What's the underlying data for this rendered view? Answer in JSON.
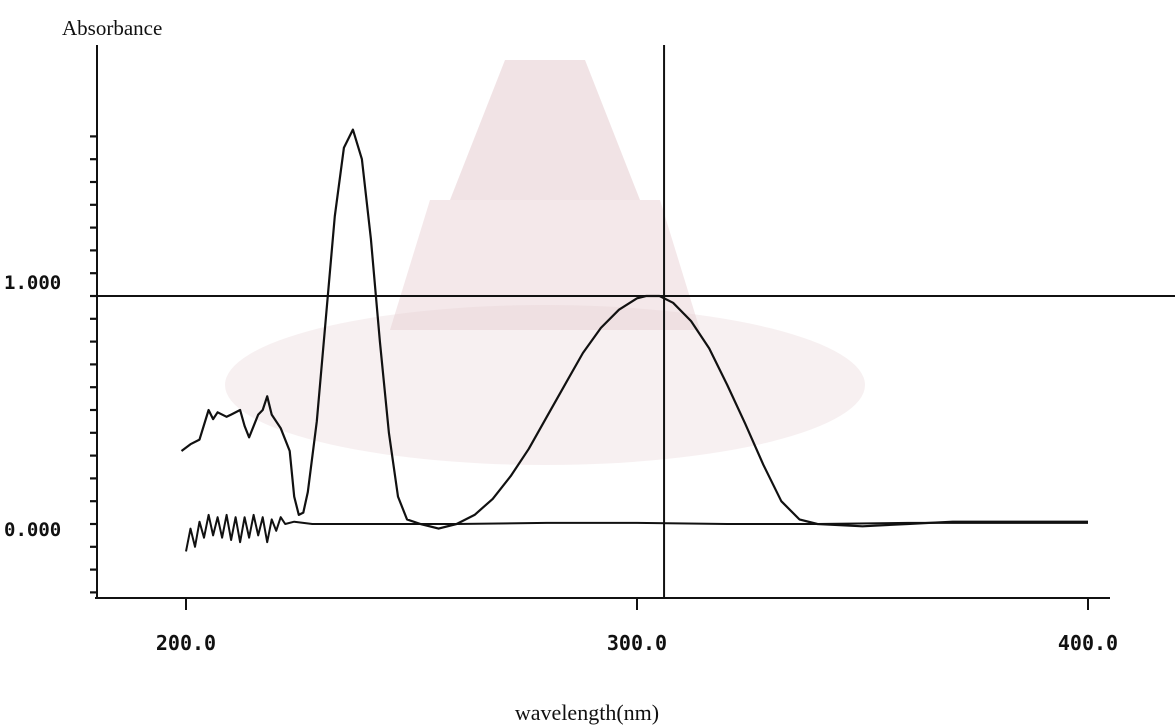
{
  "chart_data": {
    "type": "line",
    "ylabel": "Absorbance",
    "xlabel": "wavelength(nm)",
    "x_ticks": [
      "200.0",
      "300.0",
      "400.0"
    ],
    "x_tick_values": [
      200,
      300,
      400
    ],
    "y_ticks": [
      "0.000",
      "1.000"
    ],
    "y_tick_values": [
      0,
      1
    ],
    "xlim": [
      180,
      420
    ],
    "ylim": [
      -0.34,
      1.88
    ],
    "grid": false,
    "cursor": {
      "x": 306,
      "y": 1.0
    },
    "series": [
      {
        "points": [
          [
            199,
            0.32
          ],
          [
            201,
            0.35
          ],
          [
            203,
            0.37
          ],
          [
            205,
            0.5
          ],
          [
            206,
            0.46
          ],
          [
            207,
            0.49
          ],
          [
            209,
            0.47
          ],
          [
            210,
            0.48
          ],
          [
            212,
            0.5
          ],
          [
            213,
            0.43
          ],
          [
            214,
            0.38
          ],
          [
            216,
            0.48
          ],
          [
            217,
            0.5
          ],
          [
            218,
            0.56
          ],
          [
            219,
            0.48
          ],
          [
            221,
            0.42
          ],
          [
            223,
            0.32
          ],
          [
            224,
            0.12
          ],
          [
            225,
            0.04
          ],
          [
            226,
            0.05
          ],
          [
            227,
            0.14
          ],
          [
            229,
            0.45
          ],
          [
            231,
            0.9
          ],
          [
            233,
            1.35
          ],
          [
            235,
            1.65
          ],
          [
            237,
            1.73
          ],
          [
            239,
            1.6
          ],
          [
            241,
            1.25
          ],
          [
            243,
            0.8
          ],
          [
            245,
            0.4
          ],
          [
            247,
            0.12
          ],
          [
            249,
            0.02
          ],
          [
            252,
            0.0
          ],
          [
            256,
            -0.02
          ],
          [
            260,
            0.0
          ],
          [
            264,
            0.04
          ],
          [
            268,
            0.11
          ],
          [
            272,
            0.21
          ],
          [
            276,
            0.33
          ],
          [
            280,
            0.47
          ],
          [
            284,
            0.61
          ],
          [
            288,
            0.75
          ],
          [
            292,
            0.86
          ],
          [
            296,
            0.94
          ],
          [
            300,
            0.99
          ],
          [
            302,
            1.0
          ],
          [
            305,
            1.0
          ],
          [
            308,
            0.97
          ],
          [
            312,
            0.89
          ],
          [
            316,
            0.77
          ],
          [
            320,
            0.61
          ],
          [
            324,
            0.44
          ],
          [
            328,
            0.26
          ],
          [
            332,
            0.1
          ],
          [
            336,
            0.02
          ],
          [
            340,
            0.0
          ],
          [
            350,
            -0.01
          ],
          [
            360,
            0.0
          ],
          [
            370,
            0.01
          ],
          [
            380,
            0.01
          ],
          [
            390,
            0.01
          ],
          [
            400,
            0.01
          ]
        ]
      },
      {
        "points": [
          [
            200,
            -0.12
          ],
          [
            201,
            -0.02
          ],
          [
            202,
            -0.1
          ],
          [
            203,
            0.01
          ],
          [
            204,
            -0.06
          ],
          [
            205,
            0.04
          ],
          [
            206,
            -0.05
          ],
          [
            207,
            0.03
          ],
          [
            208,
            -0.06
          ],
          [
            209,
            0.04
          ],
          [
            210,
            -0.07
          ],
          [
            211,
            0.03
          ],
          [
            212,
            -0.08
          ],
          [
            213,
            0.03
          ],
          [
            214,
            -0.06
          ],
          [
            215,
            0.04
          ],
          [
            216,
            -0.05
          ],
          [
            217,
            0.03
          ],
          [
            218,
            -0.08
          ],
          [
            219,
            0.02
          ],
          [
            220,
            -0.03
          ],
          [
            221,
            0.03
          ],
          [
            222,
            0.0
          ],
          [
            224,
            0.01
          ],
          [
            228,
            0.0
          ],
          [
            240,
            0.0
          ],
          [
            260,
            0.0
          ],
          [
            280,
            0.005
          ],
          [
            300,
            0.005
          ],
          [
            320,
            0.0
          ],
          [
            340,
            0.0
          ],
          [
            360,
            0.005
          ],
          [
            380,
            0.005
          ],
          [
            400,
            0.005
          ]
        ]
      }
    ]
  },
  "scan_labels": {
    "ylabel_raw": "Absorbance",
    "y_ticks_raw": [
      "1.000",
      "0.000"
    ],
    "x_ticks_raw": [
      "200.0",
      "300.0",
      "400.0"
    ]
  }
}
